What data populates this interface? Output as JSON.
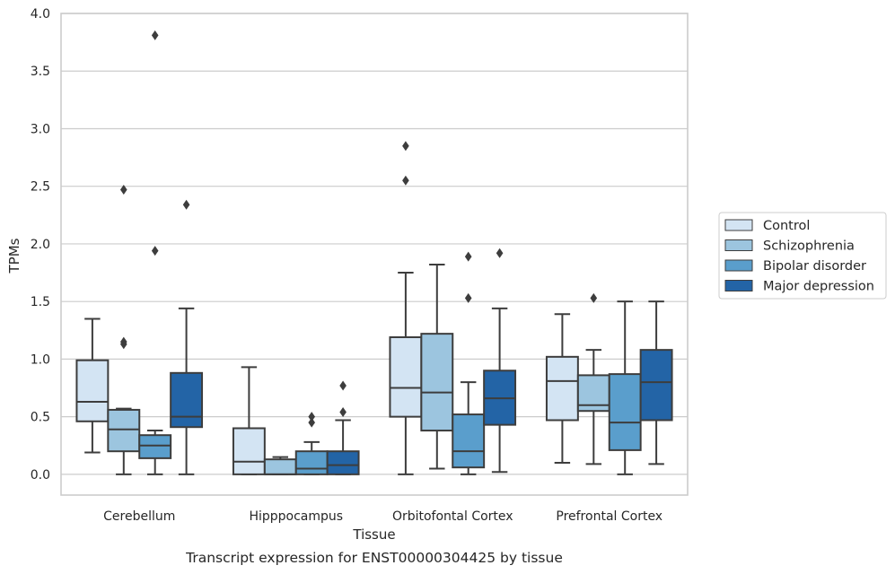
{
  "caption": "Transcript expression for ENST00000304425 by tissue",
  "chart_data": {
    "type": "box",
    "xlabel": "Tissue",
    "ylabel": "TPMs",
    "ylim": [
      -0.18,
      4.0
    ],
    "yticks": [
      "0.0",
      "0.5",
      "1.0",
      "1.5",
      "2.0",
      "2.5",
      "3.0",
      "3.5",
      "4.0"
    ],
    "grid": "horizontal",
    "legend_position": "right",
    "categories": [
      "Cerebellum",
      "Hipppocampus",
      "Orbitofontal Cortex",
      "Prefrontal Cortex"
    ],
    "series": [
      {
        "name": "Control",
        "color": "#d3e4f3",
        "boxes": [
          {
            "whislo": 0.19,
            "q1": 0.46,
            "med": 0.63,
            "q3": 0.99,
            "whishi": 1.35,
            "fliers": []
          },
          {
            "whislo": 0.0,
            "q1": 0.0,
            "med": 0.11,
            "q3": 0.4,
            "whishi": 0.93,
            "fliers": []
          },
          {
            "whislo": 0.0,
            "q1": 0.5,
            "med": 0.75,
            "q3": 1.19,
            "whishi": 1.75,
            "fliers": [
              2.55,
              2.85
            ]
          },
          {
            "whislo": 0.1,
            "q1": 0.47,
            "med": 0.81,
            "q3": 1.02,
            "whishi": 1.39,
            "fliers": []
          }
        ]
      },
      {
        "name": "Schizophrenia",
        "color": "#9cc5df",
        "boxes": [
          {
            "whislo": 0.0,
            "q1": 0.2,
            "med": 0.39,
            "q3": 0.56,
            "whishi": 0.57,
            "fliers": [
              1.13,
              1.15,
              2.47
            ]
          },
          {
            "whislo": 0.0,
            "q1": 0.0,
            "med": 0.0,
            "q3": 0.13,
            "whishi": 0.15,
            "fliers": []
          },
          {
            "whislo": 0.05,
            "q1": 0.38,
            "med": 0.71,
            "q3": 1.22,
            "whishi": 1.82,
            "fliers": []
          },
          {
            "whislo": 0.09,
            "q1": 0.55,
            "med": 0.6,
            "q3": 0.86,
            "whishi": 1.08,
            "fliers": [
              1.53
            ]
          }
        ]
      },
      {
        "name": "Bipolar disorder",
        "color": "#5a9ecc",
        "boxes": [
          {
            "whislo": 0.0,
            "q1": 0.14,
            "med": 0.25,
            "q3": 0.34,
            "whishi": 0.38,
            "fliers": [
              1.94,
              3.81
            ]
          },
          {
            "whislo": 0.0,
            "q1": 0.0,
            "med": 0.05,
            "q3": 0.2,
            "whishi": 0.28,
            "fliers": [
              0.45,
              0.5
            ]
          },
          {
            "whislo": 0.0,
            "q1": 0.06,
            "med": 0.2,
            "q3": 0.52,
            "whishi": 0.8,
            "fliers": [
              1.53,
              1.89
            ]
          },
          {
            "whislo": 0.0,
            "q1": 0.21,
            "med": 0.45,
            "q3": 0.87,
            "whishi": 1.5,
            "fliers": []
          }
        ]
      },
      {
        "name": "Major depression",
        "color": "#2364a6",
        "boxes": [
          {
            "whislo": 0.0,
            "q1": 0.41,
            "med": 0.5,
            "q3": 0.88,
            "whishi": 1.44,
            "fliers": [
              2.34
            ]
          },
          {
            "whislo": 0.0,
            "q1": 0.0,
            "med": 0.08,
            "q3": 0.2,
            "whishi": 0.47,
            "fliers": [
              0.54,
              0.77
            ]
          },
          {
            "whislo": 0.02,
            "q1": 0.43,
            "med": 0.66,
            "q3": 0.9,
            "whishi": 1.44,
            "fliers": [
              1.92
            ]
          },
          {
            "whislo": 0.09,
            "q1": 0.47,
            "med": 0.8,
            "q3": 1.08,
            "whishi": 1.5,
            "fliers": []
          }
        ]
      }
    ]
  }
}
